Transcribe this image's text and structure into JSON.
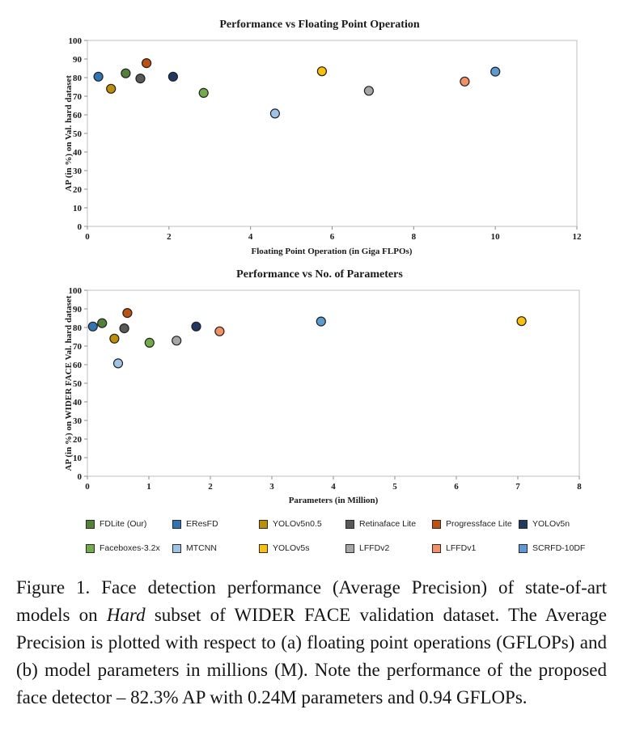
{
  "legend": {
    "items": [
      {
        "label": "FDLite (Our)",
        "color": "#538135"
      },
      {
        "label": "EResFD",
        "color": "#2E75B6"
      },
      {
        "label": "YOLOv5n0.5",
        "color": "#BF8F00"
      },
      {
        "label": "Retinaface Lite",
        "color": "#595959"
      },
      {
        "label": "Progressface Lite",
        "color": "#C0500B"
      },
      {
        "label": "YOLOv5n",
        "color": "#203864"
      },
      {
        "label": "Faceboxes-3.2x",
        "color": "#70AD47"
      },
      {
        "label": "MTCNN",
        "color": "#9DC3E6"
      },
      {
        "label": "YOLOv5s",
        "color": "#FFC000"
      },
      {
        "label": "LFFDv2",
        "color": "#A6A6A6"
      },
      {
        "label": "LFFDv1",
        "color": "#F49064"
      },
      {
        "label": "SCRFD-10DF",
        "color": "#5B9BD5"
      }
    ]
  },
  "chart_data": [
    {
      "type": "scatter",
      "title": "Performance vs Floating Point Operation",
      "xlabel": "Floating Point Operation (in Giga FLPOs)",
      "ylabel": "AP (in %) on Val. hard dataset",
      "xlim": [
        0,
        12
      ],
      "ylim": [
        0,
        100
      ],
      "xticks": [
        0,
        2,
        4,
        6,
        8,
        10,
        12
      ],
      "yticks": [
        0,
        10,
        20,
        30,
        40,
        50,
        60,
        70,
        80,
        90,
        100
      ],
      "grid": false,
      "legend_position": "bottom",
      "points": [
        {
          "series": "EResFD",
          "x": 0.27,
          "y": 80.5
        },
        {
          "series": "YOLOv5n0.5",
          "x": 0.58,
          "y": 74.0
        },
        {
          "series": "FDLite (Our)",
          "x": 0.94,
          "y": 82.3
        },
        {
          "series": "Retinaface Lite",
          "x": 1.3,
          "y": 79.5
        },
        {
          "series": "Progressface Lite",
          "x": 1.45,
          "y": 87.8
        },
        {
          "series": "YOLOv5n",
          "x": 2.1,
          "y": 80.5
        },
        {
          "series": "Faceboxes-3.2x",
          "x": 2.85,
          "y": 71.8
        },
        {
          "series": "MTCNN",
          "x": 4.6,
          "y": 60.7
        },
        {
          "series": "YOLOv5s",
          "x": 5.75,
          "y": 83.4
        },
        {
          "series": "LFFDv2",
          "x": 6.9,
          "y": 72.9
        },
        {
          "series": "LFFDv1",
          "x": 9.25,
          "y": 77.9
        },
        {
          "series": "SCRFD-10DF",
          "x": 10.0,
          "y": 83.2
        }
      ]
    },
    {
      "type": "scatter",
      "title": "Performance vs No. of Parameters",
      "xlabel": "Parameters (in Million)",
      "ylabel": "AP (in %) on WIDER FACE Val. hard dataset",
      "xlim": [
        0,
        8
      ],
      "ylim": [
        0,
        100
      ],
      "xticks": [
        0,
        1,
        2,
        3,
        4,
        5,
        6,
        7,
        8
      ],
      "yticks": [
        0,
        10,
        20,
        30,
        40,
        50,
        60,
        70,
        80,
        90,
        100
      ],
      "grid": false,
      "legend_position": "bottom",
      "points": [
        {
          "series": "EResFD",
          "x": 0.09,
          "y": 80.5
        },
        {
          "series": "FDLite (Our)",
          "x": 0.24,
          "y": 82.3
        },
        {
          "series": "YOLOv5n0.5",
          "x": 0.44,
          "y": 74.0
        },
        {
          "series": "MTCNN",
          "x": 0.5,
          "y": 60.7
        },
        {
          "series": "Retinaface Lite",
          "x": 0.6,
          "y": 79.5
        },
        {
          "series": "Progressface Lite",
          "x": 0.65,
          "y": 87.8
        },
        {
          "series": "Faceboxes-3.2x",
          "x": 1.01,
          "y": 71.8
        },
        {
          "series": "LFFDv2",
          "x": 1.45,
          "y": 72.9
        },
        {
          "series": "YOLOv5n",
          "x": 1.77,
          "y": 80.5
        },
        {
          "series": "LFFDv1",
          "x": 2.15,
          "y": 77.9
        },
        {
          "series": "SCRFD-10DF",
          "x": 3.8,
          "y": 83.2
        },
        {
          "series": "YOLOv5s",
          "x": 7.06,
          "y": 83.4
        }
      ]
    }
  ],
  "figure": {
    "caption_segments": [
      {
        "text": "Figure 1. Face detection performance (Average Precision) of state-of-art models on ",
        "style": "normal"
      },
      {
        "text": "Hard",
        "style": "italic"
      },
      {
        "text": " subset of WIDER FACE validation dataset. The Average Precision is plotted with respect to (a) floating point operations (GFLOPs) and (b) model parameters in millions (M). Note the performance of the proposed face detector – ",
        "style": "normal"
      },
      {
        "text": "82.3%",
        "style": "math"
      },
      {
        "text": " AP with ",
        "style": "normal"
      },
      {
        "text": "0.24M",
        "style": "math"
      },
      {
        "text": " parameters and ",
        "style": "normal"
      },
      {
        "text": "0.94",
        "style": "math"
      },
      {
        "text": " GFLOPs.",
        "style": "normal"
      }
    ]
  }
}
